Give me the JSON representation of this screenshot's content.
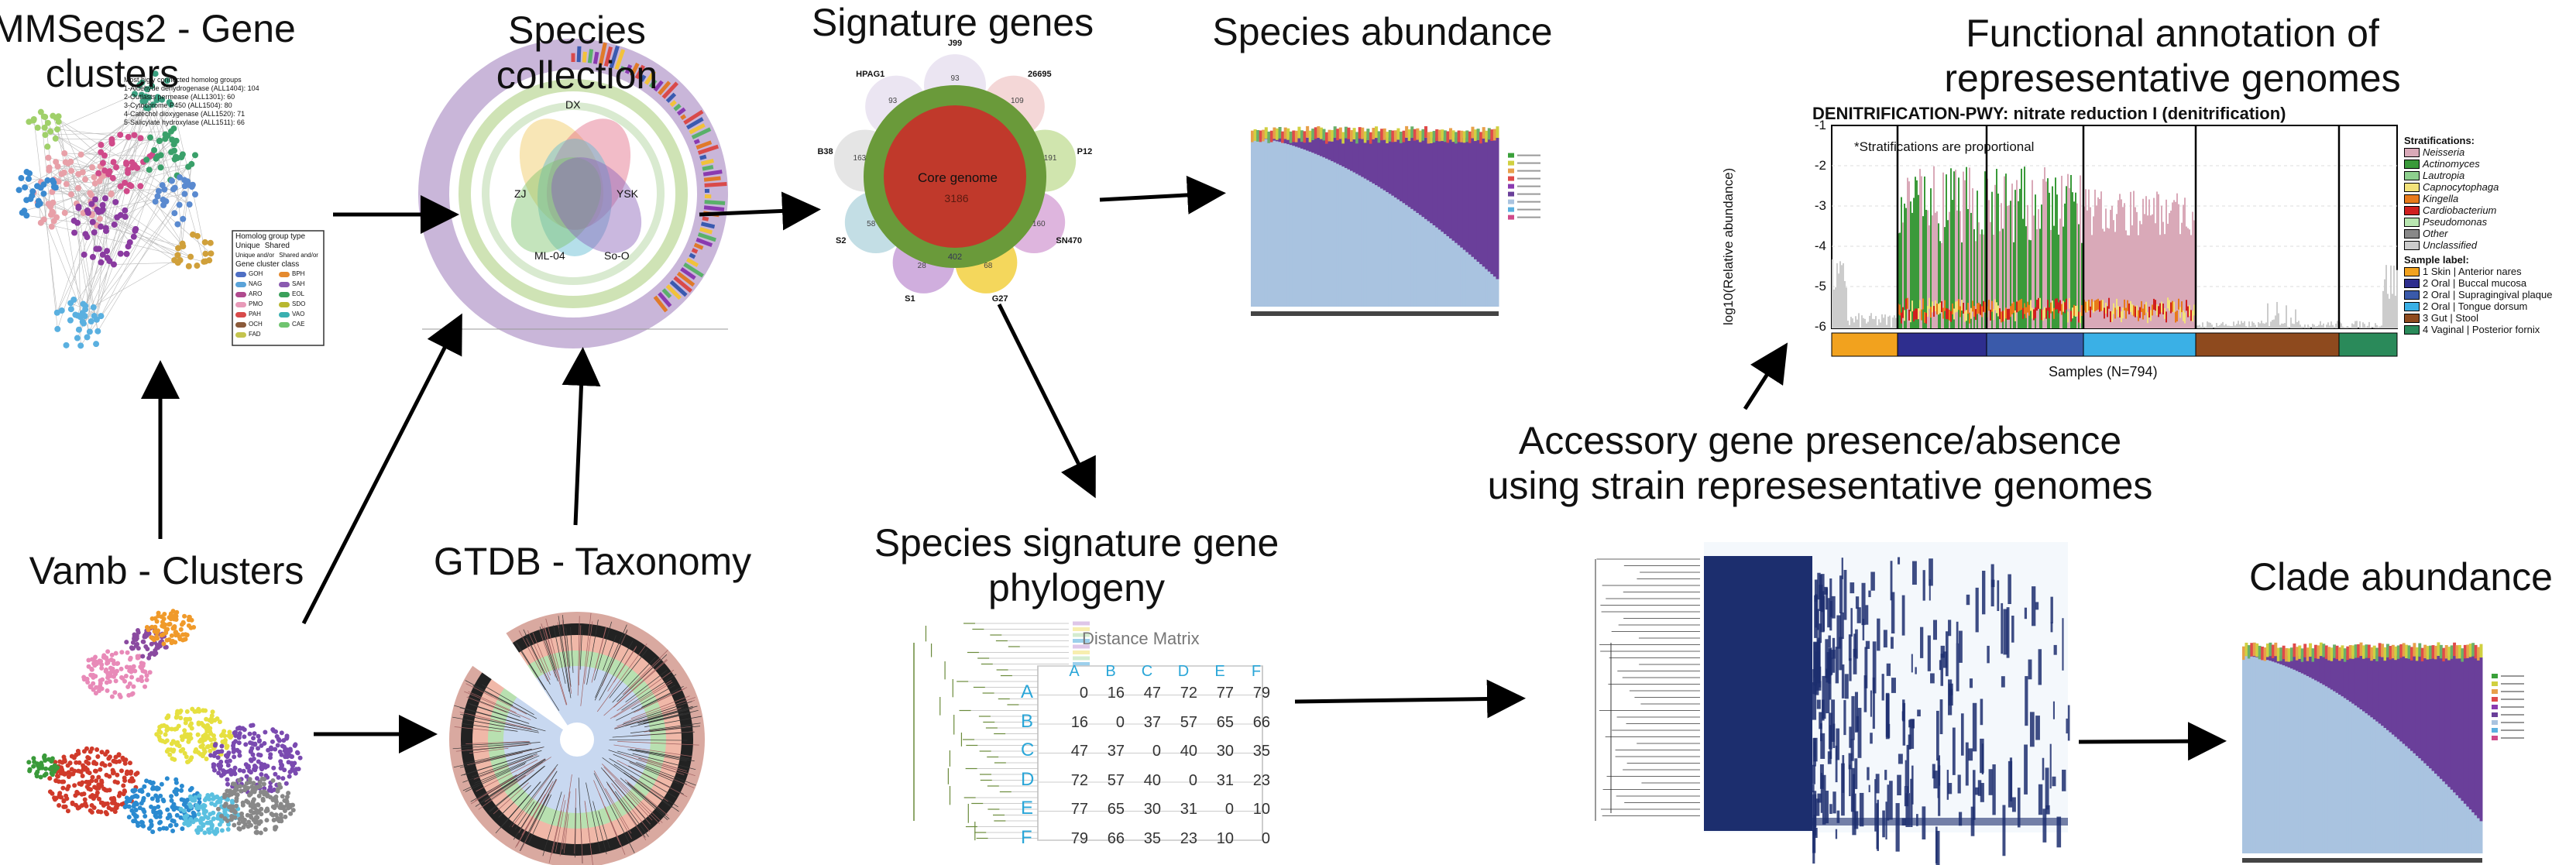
{
  "titles": {
    "mmseqs_line1": "MMSeqs2 - Gene",
    "mmseqs_line2": "clusters",
    "species_line1": "Species",
    "species_line2": "collection",
    "signature_genes": "Signature genes",
    "species_abundance": "Species abundance",
    "functional_line1": "Functional annotation of",
    "functional_line2": "represesentative genomes",
    "vamb": "Vamb - Clusters",
    "gtdb": "GTDB - Taxonomy",
    "phylogeny_line1": "Species signature gene",
    "phylogeny_line2": "phylogeny",
    "accessory_line1": "Accessory gene presence/absence",
    "accessory_line2": "using strain represesentative genomes",
    "clade_abundance": "Clade abundance"
  },
  "gene_cluster_panel": {
    "homolog_header": "Most higly connected homolog groups",
    "homolog_items": [
      "1-Aldehyde dehydrogenase (ALL1404): 104",
      "2-Outlasts permease (ALL1301): 60",
      "3-Cytochrome P450 (ALL1504): 80",
      "4-Catechol dioxygenase (ALL1520): 71",
      "5-Salicylate hydroxylase (ALL1511): 66"
    ],
    "legend_type_title": "Homolog group type",
    "legend_type_items": [
      "Unique",
      "Shared",
      "Unique and/or",
      "Shared and/or"
    ],
    "legend_class_title": "Gene cluster class",
    "legend_class_items": [
      {
        "label": "GOH",
        "color": "#4e6fc4"
      },
      {
        "label": "BPH",
        "color": "#e58a2e"
      },
      {
        "label": "NAG",
        "color": "#5aa3d9"
      },
      {
        "label": "SAH",
        "color": "#8a5ab0"
      },
      {
        "label": "ARO",
        "color": "#b04a8e"
      },
      {
        "label": "EOL",
        "color": "#3aa05a"
      },
      {
        "label": "PMO",
        "color": "#e89ab8"
      },
      {
        "label": "SDO",
        "color": "#b8b830"
      },
      {
        "label": "PAH",
        "color": "#d84a4a"
      },
      {
        "label": "VAO",
        "color": "#3ab0b0"
      },
      {
        "label": "OCH",
        "color": "#8a5a3a"
      },
      {
        "label": "CAE",
        "color": "#6fc46f"
      },
      {
        "label": "FAD",
        "color": "#c4c44e"
      }
    ]
  },
  "species_collection": {
    "labels": [
      "DX",
      "YSK",
      "ZJ",
      "ML-04",
      "So-O"
    ]
  },
  "signature_genes": {
    "core_label": "Core genome",
    "core_value": "3186",
    "petals": [
      {
        "label": "J99",
        "value": "93"
      },
      {
        "label": "26695",
        "value": "109"
      },
      {
        "label": "P12",
        "value": "191"
      },
      {
        "label": "SN470",
        "value": "160"
      },
      {
        "label": "G27",
        "value": "68"
      },
      {
        "label": "S1",
        "value": "28"
      },
      {
        "label": "S2",
        "value": "58"
      },
      {
        "label": "B38",
        "value": "163"
      },
      {
        "label": "HPAG1",
        "value": "93"
      }
    ],
    "inner_value": "402"
  },
  "functional": {
    "title": "DENITRIFICATION-PWY: nitrate reduction I (denitrification)",
    "ylabel": "log10(Relative abundance)",
    "yticks": [
      "-1",
      "-2",
      "-3",
      "-4",
      "-5",
      "-6"
    ],
    "note": "*Stratifications are proportional",
    "xlabel": "Samples (N=794)",
    "strat_title": "Stratifications:",
    "stratifications": [
      {
        "label": "Neisseria",
        "color": "#d9a9b8"
      },
      {
        "label": "Actinomyces",
        "color": "#3a9a3a"
      },
      {
        "label": "Lautropia",
        "color": "#8ed08e"
      },
      {
        "label": "Capnocytophaga",
        "color": "#f2e27a"
      },
      {
        "label": "Kingella",
        "color": "#e87a1a"
      },
      {
        "label": "Cardiobacterium",
        "color": "#d01f1f"
      },
      {
        "label": "Pseudomonas",
        "color": "#b8e6b0"
      },
      {
        "label": "Other",
        "color": "#888888"
      },
      {
        "label": "Unclassified",
        "color": "#cccccc"
      }
    ],
    "sample_title": "Sample label:",
    "samples": [
      {
        "label": "1 Skin | Anterior nares",
        "color": "#f2a21e"
      },
      {
        "label": "2 Oral | Buccal mucosa",
        "color": "#2e2e8e"
      },
      {
        "label": "2 Oral | Supragingival plaque",
        "color": "#3a5aaa"
      },
      {
        "label": "2 Oral | Tongue dorsum",
        "color": "#3ab0e6"
      },
      {
        "label": "3 Gut | Stool",
        "color": "#8e4a1e"
      },
      {
        "label": "4 Vaginal | Posterior fornix",
        "color": "#2a8a5a"
      }
    ]
  },
  "distance_matrix": {
    "title": "Distance Matrix",
    "headers": [
      "A",
      "B",
      "C",
      "D",
      "E",
      "F"
    ],
    "rows": [
      {
        "label": "A",
        "values": [
          "0",
          "16",
          "47",
          "72",
          "77",
          "79"
        ]
      },
      {
        "label": "B",
        "values": [
          "16",
          "0",
          "37",
          "57",
          "65",
          "66"
        ]
      },
      {
        "label": "C",
        "values": [
          "47",
          "37",
          "0",
          "40",
          "30",
          "35"
        ]
      },
      {
        "label": "D",
        "values": [
          "72",
          "57",
          "40",
          "0",
          "31",
          "23"
        ]
      },
      {
        "label": "E",
        "values": [
          "77",
          "65",
          "30",
          "31",
          "0",
          "10"
        ]
      },
      {
        "label": "F",
        "values": [
          "79",
          "66",
          "35",
          "23",
          "10",
          "0"
        ]
      }
    ]
  },
  "colors": {
    "arrow": "#000000",
    "abundance_blue": "#a9c3e0",
    "abundance_purple": "#6a3f9a",
    "core_red": "#c0392b",
    "core_green": "#6a9a3a",
    "matrix_header": "#2aa6d8"
  }
}
